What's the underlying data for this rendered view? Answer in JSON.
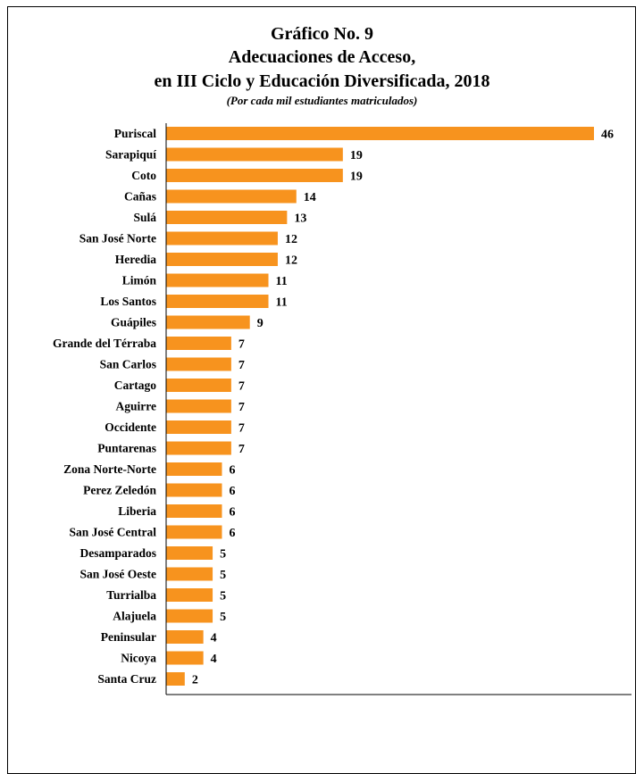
{
  "chart_data": {
    "type": "bar",
    "orientation": "horizontal",
    "title_line1": "Gráfico No. 9",
    "title_line2": "Adecuaciones de Acceso,",
    "title_line3": "en III  Ciclo y Educación Diversificada,  2018",
    "subtitle": "(Por cada mil estudiantes matriculados)",
    "categories": [
      "Puriscal",
      "Sarapiquí",
      "Coto",
      "Cañas",
      "Sulá",
      "San José Norte",
      "Heredia",
      "Limón",
      "Los Santos",
      "Guápiles",
      "Grande del Térraba",
      "San Carlos",
      "Cartago",
      "Aguirre",
      "Occidente",
      "Puntarenas",
      "Zona Norte-Norte",
      "Perez Zeledón",
      "Liberia",
      "San José Central",
      "Desamparados",
      "San José Oeste",
      "Turrialba",
      "Alajuela",
      "Peninsular",
      "Nicoya",
      "Santa Cruz"
    ],
    "values": [
      46,
      19,
      19,
      14,
      13,
      12,
      12,
      11,
      11,
      9,
      7,
      7,
      7,
      7,
      7,
      7,
      6,
      6,
      6,
      6,
      5,
      5,
      5,
      5,
      4,
      4,
      2
    ],
    "xlim": [
      0,
      50
    ],
    "grid": false,
    "legend": "none",
    "bar_color": "#F7931E"
  }
}
